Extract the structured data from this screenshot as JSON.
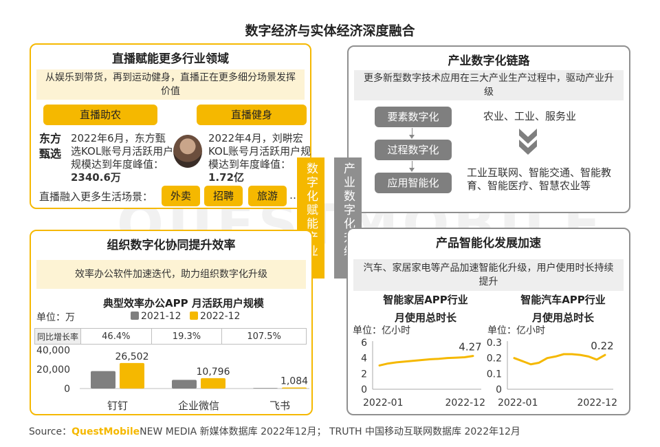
{
  "title": "数字经济与实体经济深度融合",
  "watermark": "QUESTMOBILE",
  "colors": {
    "yellow": "#f5b800",
    "gray": "#7f7f7f",
    "dark": "#333333"
  },
  "panel_tl": {
    "heading": "直播赋能更多行业领域",
    "subtitle": "从娱乐到带货，再到运动健身，直播正在更多细分场景发挥价值",
    "left_btn": "直播助农",
    "right_btn": "直播健身",
    "left_logo": "东方甄选",
    "left_text": "2022年6月，东方甄选KOL账号月活跃用户规模达到年度峰值：",
    "left_value": "2340.6万",
    "right_text": "2022年4月，刘畊宏KOL账号月活跃用户规模达到年度峰值：",
    "right_value": "1.72亿",
    "scenes_label": "直播融入更多生活场景：",
    "scenes": [
      "外卖",
      "招聘",
      "旅游"
    ],
    "ellipsis": "…"
  },
  "vertical_left": "数字化赋能产业",
  "vertical_right": "产业数字化升级",
  "panel_tr": {
    "heading": "产业数字化链路",
    "subtitle": "更多新型数字技术应用在三大产业生产过程中，驱动产业升级",
    "steps": [
      "要素数字化",
      "过程数字化",
      "应用智能化"
    ],
    "industries": "农业、工业、服务业",
    "results": "工业互联网、智能交通、智能教育、智能医疗、智慧农业等"
  },
  "panel_bl": {
    "heading": "组织数字化协同提升效率",
    "subtitle": "效率办公软件加速迭代，助力组织数字化升级",
    "growth_label": "同比增长率",
    "growth": [
      "46.4%",
      "19.3%",
      "107.5%"
    ]
  },
  "panel_br": {
    "heading": "产品智能化发展加速",
    "subtitle": "汽车、家居家电等产品加速智能化升级，用户使用时长持续提升"
  },
  "source": {
    "prefix": "Source：",
    "brand_a": "Quest",
    "brand_b": "Mobile",
    "rest": "NEW MEDIA 新媒体数据库 2022年12月； TRUTH 中国移动互联网数据库 2022年12月"
  },
  "chart_data": [
    {
      "type": "bar",
      "title": "典型效率办公APP 月活跃用户规模",
      "unit": "单位：万",
      "categories": [
        "钉钉",
        "企业微信",
        "飞书"
      ],
      "series": [
        {
          "name": "2021-12",
          "values": [
            18090,
            9050,
            522
          ],
          "color": "#7f7f7f"
        },
        {
          "name": "2022-12",
          "values": [
            26502,
            10796,
            1084
          ],
          "color": "#f5b800"
        }
      ],
      "data_labels": [
        "26,502",
        "10,796",
        "1,084"
      ],
      "yticks": [
        "40,000",
        "20,000",
        "0"
      ],
      "ylim": [
        0,
        40000
      ]
    },
    {
      "type": "line",
      "title": "智能家居APP行业月使用总时长",
      "unit": "单位：亿小时",
      "x": [
        "2022-01",
        "2022-02",
        "2022-03",
        "2022-04",
        "2022-05",
        "2022-06",
        "2022-07",
        "2022-08",
        "2022-09",
        "2022-10",
        "2022-11",
        "2022-12"
      ],
      "x_tick_labels": [
        "2022-01",
        "2022-12"
      ],
      "values": [
        3.05,
        3.3,
        3.45,
        3.55,
        3.65,
        3.75,
        3.85,
        3.9,
        4.0,
        4.05,
        4.1,
        4.27
      ],
      "end_label": "4.27",
      "yticks": [
        "6",
        "4",
        "2",
        "0"
      ],
      "ylim": [
        0,
        6
      ],
      "color": "#f5b800"
    },
    {
      "type": "line",
      "title": "智能汽车APP行业月使用总时长",
      "unit": "单位：亿小时",
      "x": [
        "2022-01",
        "2022-02",
        "2022-03",
        "2022-04",
        "2022-05",
        "2022-06",
        "2022-07",
        "2022-08",
        "2022-09",
        "2022-10",
        "2022-11",
        "2022-12"
      ],
      "x_tick_labels": [
        "2022-01",
        "2022-12"
      ],
      "values": [
        0.2,
        0.18,
        0.16,
        0.17,
        0.2,
        0.21,
        0.225,
        0.225,
        0.22,
        0.21,
        0.19,
        0.22
      ],
      "end_label": "0.22",
      "yticks": [
        "0.3",
        "0.2",
        "0.1",
        "0"
      ],
      "ylim": [
        0,
        0.3
      ],
      "color": "#f5b800"
    }
  ]
}
